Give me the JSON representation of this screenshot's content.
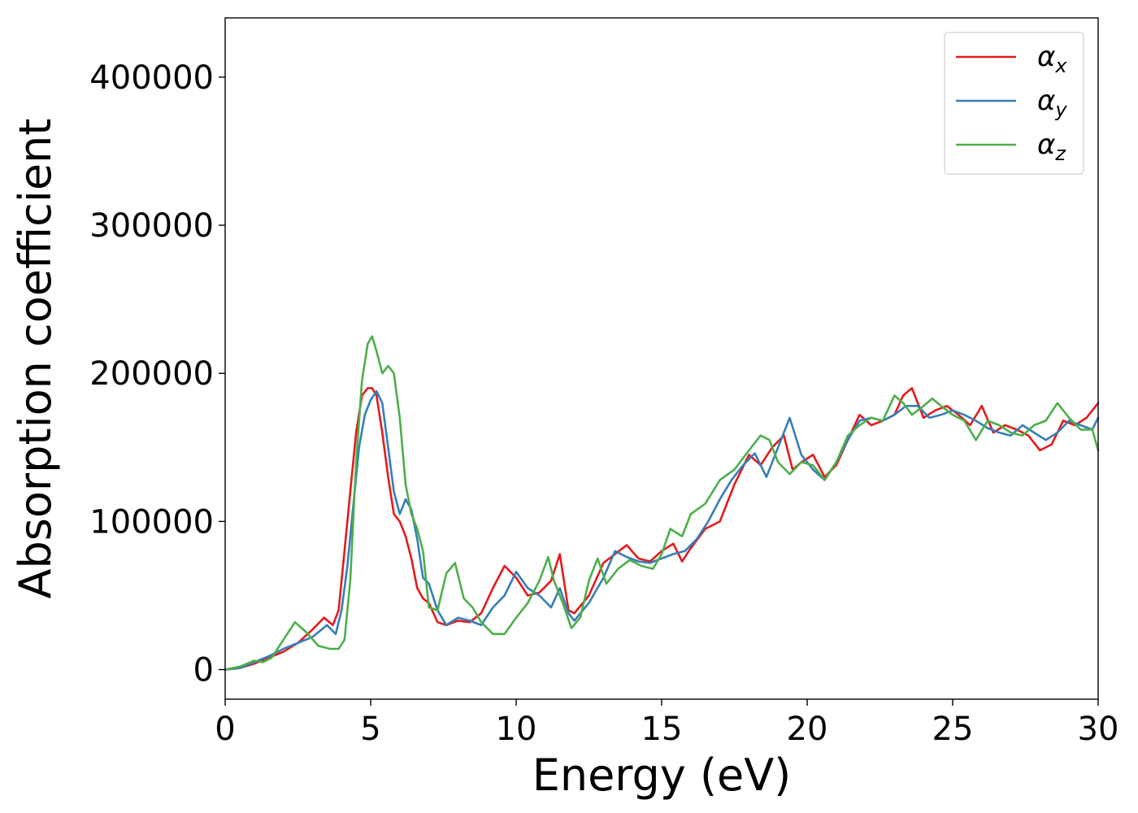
{
  "chart_data": {
    "type": "line",
    "xlabel": "Energy (eV)",
    "ylabel": "Absorption coefficient",
    "xlim": [
      0,
      30
    ],
    "ylim": [
      -20000,
      440000
    ],
    "xticks": [
      0,
      5,
      10,
      15,
      20,
      25,
      30
    ],
    "xtick_labels": [
      "0",
      "5",
      "10",
      "15",
      "20",
      "25",
      "30"
    ],
    "yticks": [
      0,
      100000,
      200000,
      300000,
      400000
    ],
    "ytick_labels": [
      "0",
      "100000",
      "200000",
      "300000",
      "400000"
    ],
    "grid": false,
    "legend_position": "top-right",
    "series": [
      {
        "name": "α",
        "subscript": "x",
        "color": "#e41a1c",
        "x": [
          0,
          0.5,
          1.0,
          1.5,
          2.0,
          2.5,
          3.0,
          3.4,
          3.7,
          3.9,
          4.1,
          4.3,
          4.5,
          4.7,
          4.9,
          5.05,
          5.2,
          5.4,
          5.6,
          5.8,
          6.0,
          6.2,
          6.4,
          6.6,
          6.8,
          7.0,
          7.3,
          7.6,
          8.0,
          8.4,
          8.8,
          9.2,
          9.6,
          10.0,
          10.4,
          10.8,
          11.2,
          11.5,
          11.8,
          12.0,
          12.5,
          13.0,
          13.4,
          13.8,
          14.2,
          14.6,
          15.0,
          15.4,
          15.7,
          16.0,
          16.5,
          17.0,
          17.5,
          18.0,
          18.4,
          18.8,
          19.2,
          19.5,
          19.8,
          20.2,
          20.6,
          21.0,
          21.4,
          21.8,
          22.2,
          22.6,
          23.0,
          23.3,
          23.6,
          24.0,
          24.4,
          24.8,
          25.2,
          25.6,
          26.0,
          26.4,
          26.8,
          27.2,
          27.6,
          28.0,
          28.4,
          28.8,
          29.2,
          29.6,
          30.0
        ],
        "y": [
          0,
          1000,
          4000,
          8000,
          12000,
          18000,
          27000,
          35000,
          30000,
          40000,
          80000,
          120000,
          160000,
          185000,
          190000,
          190000,
          185000,
          160000,
          130000,
          105000,
          100000,
          90000,
          75000,
          55000,
          48000,
          45000,
          32000,
          30000,
          33000,
          32000,
          38000,
          55000,
          70000,
          62000,
          50000,
          52000,
          60000,
          78000,
          40000,
          38000,
          50000,
          72000,
          78000,
          84000,
          75000,
          73000,
          80000,
          85000,
          73000,
          82000,
          95000,
          100000,
          125000,
          145000,
          138000,
          150000,
          158000,
          135000,
          140000,
          145000,
          130000,
          138000,
          155000,
          172000,
          165000,
          168000,
          172000,
          185000,
          190000,
          170000,
          175000,
          178000,
          172000,
          165000,
          178000,
          160000,
          165000,
          162000,
          158000,
          148000,
          152000,
          168000,
          165000,
          170000,
          180000
        ]
      },
      {
        "name": "α",
        "subscript": "y",
        "color": "#377eb8",
        "x": [
          0,
          0.5,
          1.0,
          1.5,
          2.0,
          2.5,
          3.0,
          3.5,
          3.8,
          4.0,
          4.2,
          4.4,
          4.6,
          4.8,
          5.0,
          5.2,
          5.4,
          5.6,
          5.8,
          6.0,
          6.2,
          6.4,
          6.6,
          6.8,
          7.0,
          7.3,
          7.6,
          8.0,
          8.4,
          8.8,
          9.2,
          9.6,
          10.0,
          10.4,
          10.8,
          11.2,
          11.5,
          11.8,
          12.0,
          12.5,
          13.0,
          13.4,
          13.8,
          14.2,
          14.6,
          15.0,
          15.4,
          15.8,
          16.2,
          16.6,
          17.0,
          17.4,
          17.8,
          18.2,
          18.6,
          19.0,
          19.4,
          19.8,
          20.2,
          20.6,
          21.0,
          21.4,
          21.8,
          22.2,
          22.6,
          23.0,
          23.4,
          23.8,
          24.2,
          24.6,
          25.0,
          25.4,
          25.8,
          26.2,
          26.6,
          27.0,
          27.4,
          27.8,
          28.2,
          28.6,
          29.0,
          29.4,
          29.8,
          30.0
        ],
        "y": [
          0,
          1000,
          5000,
          9000,
          14000,
          18000,
          22000,
          30000,
          24000,
          40000,
          70000,
          110000,
          150000,
          172000,
          182000,
          188000,
          180000,
          150000,
          120000,
          105000,
          115000,
          108000,
          88000,
          62000,
          58000,
          40000,
          30000,
          35000,
          33000,
          30000,
          42000,
          50000,
          66000,
          55000,
          50000,
          42000,
          55000,
          38000,
          33000,
          45000,
          62000,
          80000,
          76000,
          73000,
          72000,
          75000,
          78000,
          80000,
          88000,
          100000,
          115000,
          128000,
          138000,
          146000,
          130000,
          150000,
          170000,
          145000,
          135000,
          128000,
          140000,
          155000,
          168000,
          170000,
          168000,
          172000,
          178000,
          178000,
          170000,
          172000,
          175000,
          172000,
          168000,
          163000,
          160000,
          158000,
          165000,
          160000,
          155000,
          160000,
          168000,
          165000,
          162000,
          170000
        ]
      },
      {
        "name": "α",
        "subscript": "z",
        "color": "#4daf4a",
        "x": [
          0,
          0.5,
          1.0,
          1.3,
          1.6,
          2.0,
          2.4,
          2.8,
          3.2,
          3.6,
          3.9,
          4.1,
          4.3,
          4.5,
          4.7,
          4.9,
          5.05,
          5.2,
          5.4,
          5.6,
          5.8,
          6.0,
          6.2,
          6.4,
          6.6,
          6.8,
          7.0,
          7.3,
          7.6,
          7.9,
          8.2,
          8.5,
          8.8,
          9.2,
          9.6,
          10.0,
          10.4,
          10.8,
          11.1,
          11.3,
          11.6,
          11.9,
          12.2,
          12.5,
          12.8,
          13.1,
          13.5,
          13.9,
          14.3,
          14.7,
          15.0,
          15.3,
          15.7,
          16.0,
          16.5,
          17.0,
          17.5,
          18.0,
          18.4,
          18.7,
          19.0,
          19.4,
          19.8,
          20.2,
          20.6,
          21.0,
          21.4,
          21.8,
          22.2,
          22.6,
          23.0,
          23.3,
          23.6,
          24.0,
          24.3,
          24.6,
          25.0,
          25.4,
          25.8,
          26.2,
          26.6,
          27.0,
          27.4,
          27.8,
          28.2,
          28.6,
          29.0,
          29.4,
          29.8,
          30.0
        ],
        "y": [
          0,
          2000,
          6000,
          5000,
          8000,
          20000,
          32000,
          25000,
          16000,
          14000,
          14000,
          20000,
          60000,
          140000,
          195000,
          220000,
          225000,
          215000,
          200000,
          205000,
          200000,
          170000,
          125000,
          105000,
          95000,
          80000,
          42000,
          40000,
          65000,
          72000,
          48000,
          42000,
          32000,
          24000,
          24000,
          35000,
          45000,
          60000,
          76000,
          60000,
          45000,
          28000,
          35000,
          60000,
          75000,
          58000,
          68000,
          74000,
          70000,
          68000,
          78000,
          95000,
          90000,
          105000,
          112000,
          128000,
          135000,
          148000,
          158000,
          155000,
          140000,
          132000,
          140000,
          138000,
          128000,
          140000,
          158000,
          165000,
          170000,
          168000,
          185000,
          180000,
          172000,
          178000,
          183000,
          178000,
          172000,
          168000,
          155000,
          168000,
          165000,
          160000,
          158000,
          165000,
          168000,
          180000,
          170000,
          162000,
          162000,
          148000
        ]
      }
    ]
  }
}
